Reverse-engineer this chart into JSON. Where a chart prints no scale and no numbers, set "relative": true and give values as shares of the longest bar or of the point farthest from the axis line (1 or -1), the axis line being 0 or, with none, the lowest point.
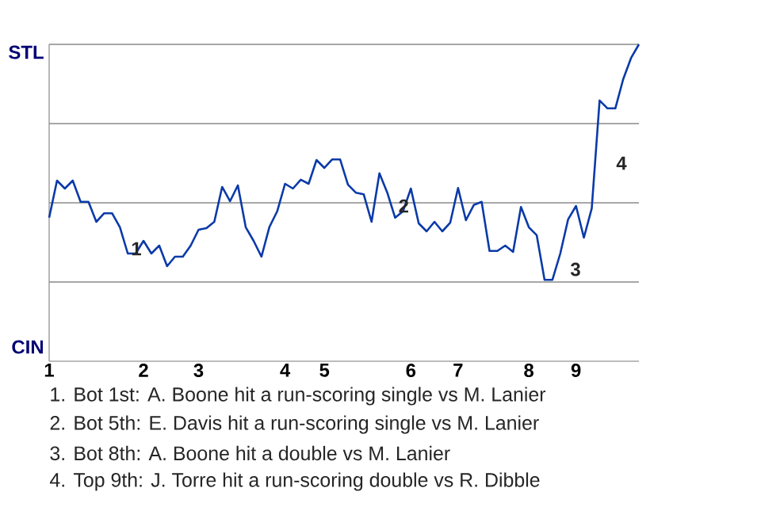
{
  "chart_data": {
    "type": "line",
    "relative": true,
    "ref_lines": [
      {
        "axis": "y",
        "value": 0.25,
        "color": "#8a8a8a"
      },
      {
        "axis": "y",
        "value": 0.5,
        "color": "#8a8a8a"
      },
      {
        "axis": "y",
        "value": 0.75,
        "color": "#8a8a8a"
      },
      {
        "axis": "y",
        "value": 1,
        "color": "#8a8a8a"
      }
    ],
    "categories": [
      "1",
      null,
      null,
      null,
      null,
      null,
      null,
      null,
      null,
      null,
      null,
      null,
      "2",
      null,
      null,
      null,
      null,
      null,
      null,
      "3",
      null,
      null,
      null,
      null,
      null,
      null,
      null,
      null,
      null,
      null,
      "4",
      null,
      null,
      null,
      null,
      "5",
      null,
      null,
      null,
      null,
      null,
      null,
      null,
      null,
      null,
      null,
      "6",
      null,
      null,
      null,
      null,
      null,
      "7",
      null,
      null,
      null,
      null,
      null,
      null,
      null,
      null,
      "8",
      null,
      null,
      null,
      null,
      null,
      "9",
      null,
      null,
      null,
      null,
      null,
      null,
      null,
      null
    ],
    "series": [
      {
        "color": "#0b3aa8",
        "values": [
          0.453,
          0.57,
          0.545,
          0.57,
          0.503,
          0.503,
          0.44,
          0.467,
          0.467,
          0.423,
          0.34,
          0.34,
          0.38,
          0.34,
          0.365,
          0.3,
          0.33,
          0.33,
          0.365,
          0.415,
          0.42,
          0.44,
          0.55,
          0.505,
          0.555,
          0.423,
          0.38,
          0.33,
          0.423,
          0.473,
          0.56,
          0.545,
          0.573,
          0.56,
          0.635,
          0.61,
          0.637,
          0.637,
          0.557,
          0.532,
          0.527,
          0.44,
          0.593,
          0.532,
          0.453,
          0.473,
          0.545,
          0.435,
          0.41,
          0.44,
          0.41,
          0.437,
          0.547,
          0.445,
          0.493,
          0.503,
          0.348,
          0.348,
          0.365,
          0.345,
          0.487,
          0.423,
          0.398,
          0.257,
          0.257,
          0.34,
          0.448,
          0.49,
          0.39,
          0.482,
          0.823,
          0.798,
          0.798,
          0.89,
          0.957,
          1
        ],
        "name": null
      }
    ],
    "annotations": [
      "STL",
      "CIN",
      {
        "text": "1",
        "x": "2",
        "y": 0.355
      },
      {
        "text": "2",
        "x": "6",
        "y": 0.49
      },
      "3",
      "4",
      "1. Bot 1st: A. Boone hit a run-scoring single vs M. Lanier",
      "2. Bot 5th: E. Davis hit a run-scoring single vs M. Lanier",
      "3. Bot 8th: A. Boone hit a double vs M. Lanier",
      "4. Top 9th: J. Torre hit a run-scoring double vs R. Dibble"
    ]
  }
}
